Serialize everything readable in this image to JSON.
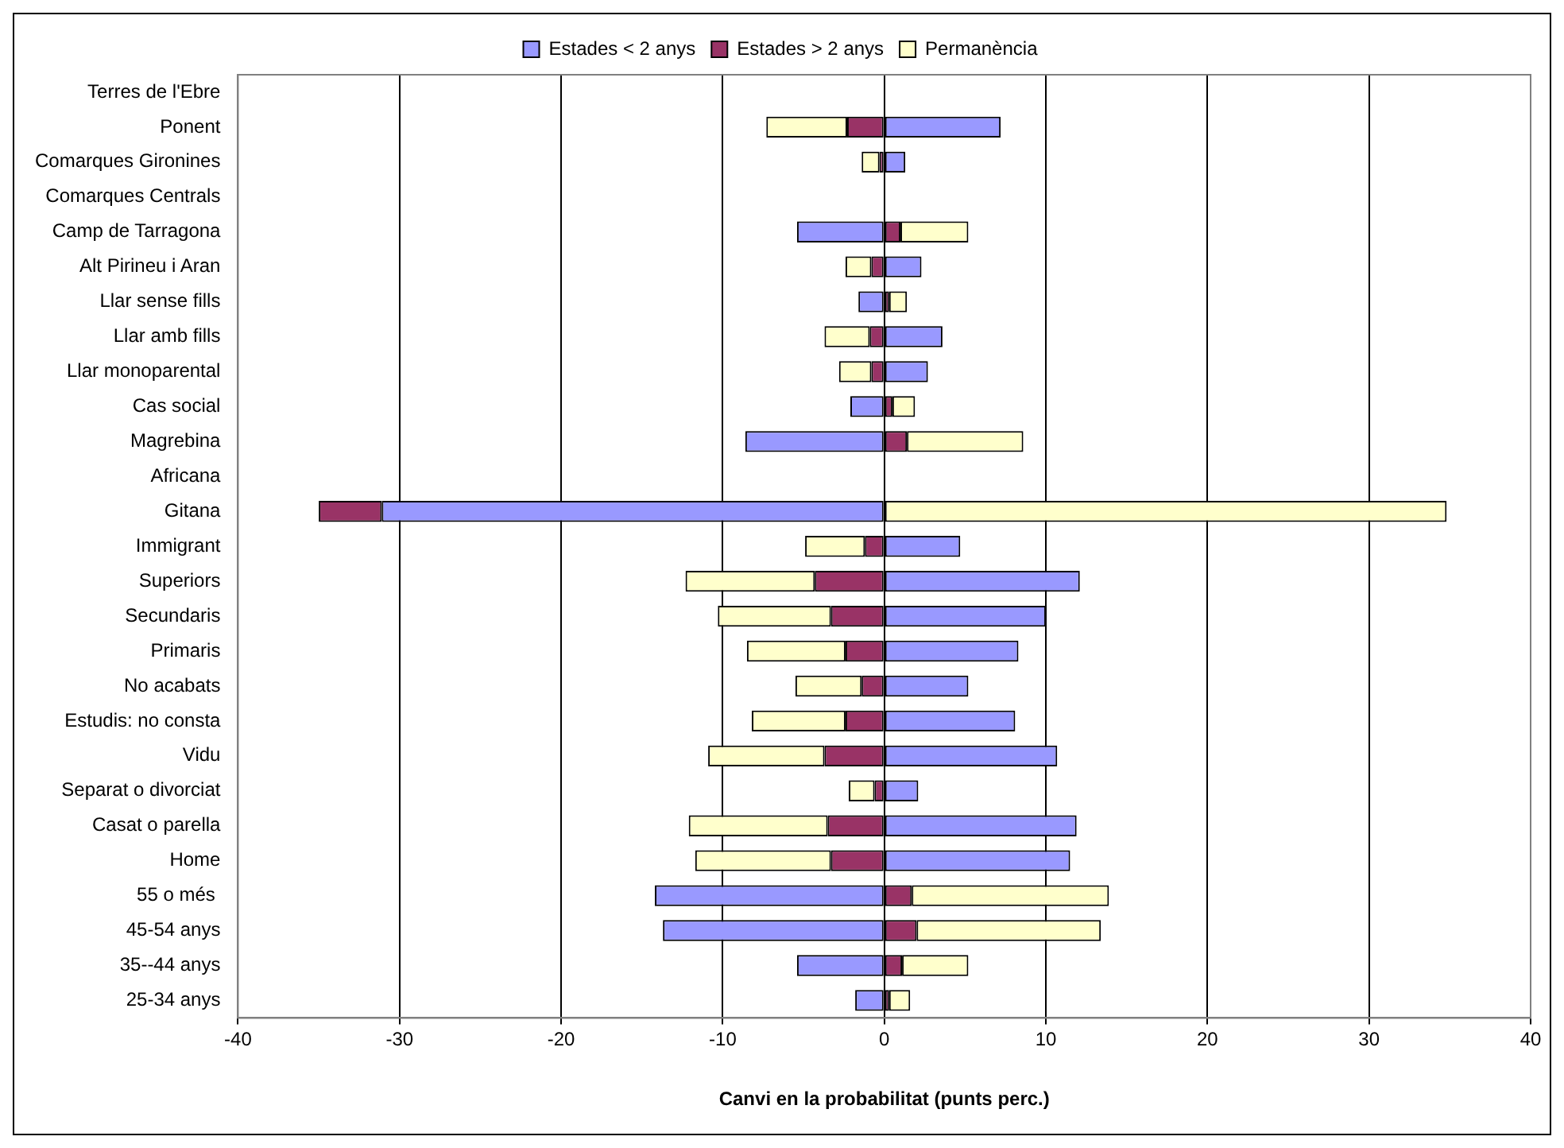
{
  "chart_data": {
    "type": "bar",
    "orientation": "horizontal",
    "stacked": true,
    "xlabel": "Canvi en la probabilitat (punts perc.)",
    "categories": [
      "Terres de l'Ebre",
      "Ponent",
      "Comarques Gironines",
      "Comarques Centrals",
      "Camp de Tarragona",
      "Alt Pirineu i Aran",
      "Llar sense fills",
      "Llar amb fills",
      "Llar monoparental",
      "Cas social",
      "Magrebina",
      "Africana",
      "Gitana",
      "Immigrant",
      "Superiors",
      "Secundaris",
      "Primaris",
      "No acabats",
      "Estudis: no consta",
      "Vidu",
      "Separat o divorciat",
      "Casat o parella",
      "Home",
      "55 o més ",
      "45-54 anys",
      "35--44 anys",
      "25-34 anys"
    ],
    "series": [
      {
        "name": "Estades < 2 anys",
        "color": "#9999ff",
        "values": [
          0,
          7.2,
          1.3,
          0,
          -5.4,
          2.3,
          -1.6,
          3.6,
          2.7,
          -2.1,
          -8.6,
          0,
          -31.1,
          4.7,
          12.1,
          10.0,
          8.3,
          5.2,
          8.1,
          10.7,
          2.1,
          11.9,
          11.5,
          -14.2,
          -13.7,
          -5.4,
          -1.8
        ]
      },
      {
        "name": "Estades > 2 anys",
        "color": "#993366",
        "values": [
          0,
          -2.3,
          -0.3,
          0,
          1.0,
          -0.8,
          0.3,
          -0.9,
          -0.8,
          0.5,
          1.4,
          0,
          -3.9,
          -1.2,
          -4.3,
          -3.3,
          -2.4,
          -1.4,
          -2.4,
          -3.7,
          -0.6,
          -3.5,
          -3.3,
          1.7,
          2.0,
          1.1,
          0.3
        ]
      },
      {
        "name": "Permanència",
        "color": "#ffffcc",
        "values": [
          0,
          -5.0,
          -1.1,
          0,
          4.2,
          -1.6,
          1.1,
          -2.8,
          -2.0,
          1.4,
          7.2,
          0,
          34.8,
          -3.7,
          -8.0,
          -7.0,
          -6.1,
          -4.1,
          -5.8,
          -7.2,
          -1.6,
          -8.6,
          -8.4,
          12.2,
          11.4,
          4.1,
          1.3
        ]
      }
    ],
    "xlim": [
      -40,
      40
    ],
    "xticks": [
      -40,
      -30,
      -20,
      -10,
      0,
      10,
      20,
      30,
      40
    ],
    "grid": "x",
    "legend": "top"
  }
}
